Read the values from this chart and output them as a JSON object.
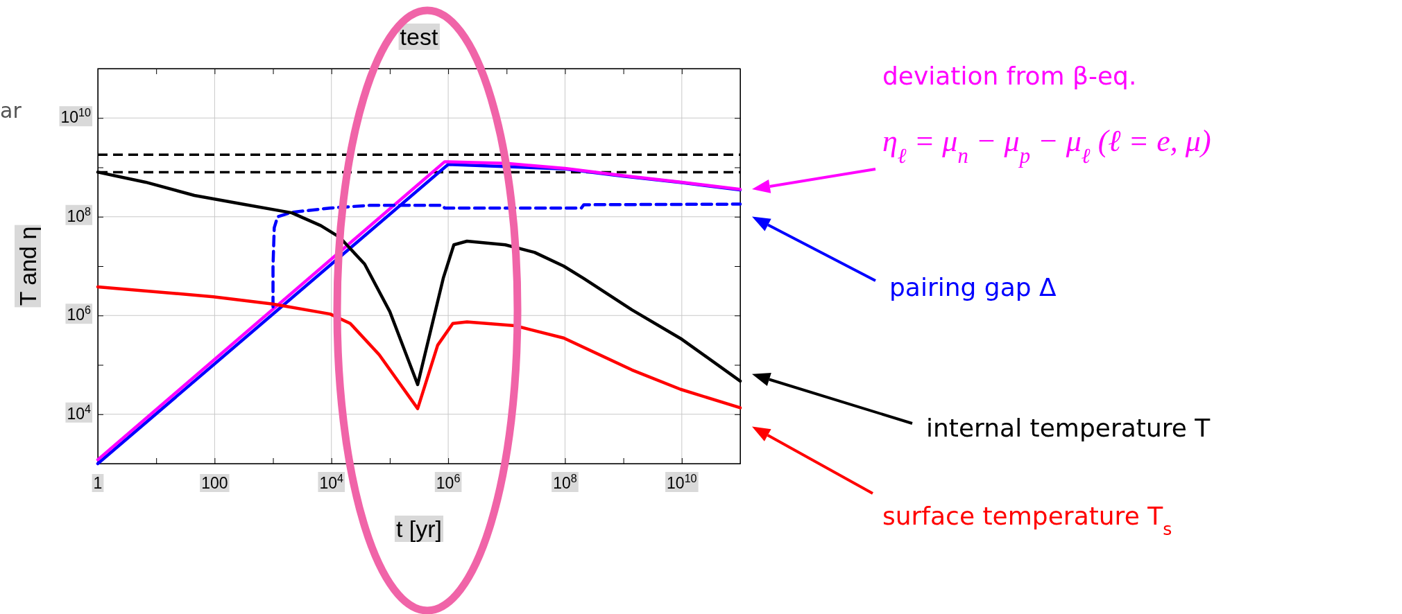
{
  "chart_data": {
    "type": "line",
    "title": "test",
    "xlabel": "t [yr]",
    "ylabel": "T and η",
    "log": "xy",
    "grid": true,
    "marker": "none",
    "xlim": [
      1,
      100000000000.0
    ],
    "ylim": [
      1000.0,
      100000000000.0
    ],
    "xticks": [
      1,
      {
        "value": 10,
        "label": null
      },
      100,
      {
        "value": 1000,
        "label": null
      },
      {
        "value": 10000.0,
        "label": "10$^{4}$"
      },
      {
        "value": 100000.0,
        "label": null
      },
      {
        "value": 1000000.0,
        "label": "10$^{6}$"
      },
      {
        "value": 10000000.0,
        "label": null
      },
      {
        "value": 100000000.0,
        "label": "10$^{8}$"
      },
      {
        "value": 1000000000.0,
        "label": null
      },
      {
        "value": 10000000000.0,
        "label": "10$^{10}$"
      }
    ],
    "yticks": [
      {
        "value": 10000.0,
        "label": "10$^{4}$"
      },
      {
        "value": 100000.0,
        "label": null
      },
      {
        "value": 1000000.0,
        "label": "10$^{6}$"
      },
      {
        "value": 10000000.0,
        "label": null
      },
      {
        "value": 100000000.0,
        "label": "10$^{8}$"
      },
      {
        "value": 1000000000.0,
        "label": null
      },
      {
        "value": 10000000000.0,
        "label": "10$^{10}$"
      }
    ],
    "ref_lines": [
      {
        "axis": "y",
        "value": 1800000000.0,
        "color": "#000000",
        "line_style": "dashed"
      },
      {
        "axis": "y",
        "value": 800000000.0,
        "color": "#000000",
        "line_style": "dashed"
      }
    ],
    "series": [
      {
        "color": "#0000ff",
        "line_style": "solid",
        "x": [
          1,
          1000000.0,
          100000000.0,
          1000000000.0,
          10000000000.0,
          100000000000.0
        ],
        "values": [
          1000.0,
          1150000000.0,
          930000000.0,
          660000000.0,
          490000000.0,
          350000000.0
        ]
      },
      {
        "color": "#ff00ff",
        "line_style": "solid",
        "x": [
          1,
          870000.0,
          1000000.0,
          10000000.0,
          100000000.0,
          1000000000.0,
          10000000000.0,
          100000000000.0
        ],
        "values": [
          1200.0,
          1300000000.0,
          1300000000.0,
          1200000000.0,
          950000000.0,
          680000000.0,
          500000000.0,
          360000000.0
        ]
      },
      {
        "color": "#0000ff",
        "line_style": "dashed",
        "x": [
          1000,
          1000,
          1050,
          1200,
          2100,
          9500,
          45000.0,
          800000.0,
          870000.0,
          190000000.0,
          210000000.0,
          100000000000.0
        ],
        "values": [
          1500000.0,
          10000000.0,
          60000000.0,
          100000000.0,
          123000000.0,
          150000000.0,
          170000000.0,
          170000000.0,
          150000000.0,
          150000000.0,
          175000000.0,
          180000000.0
        ]
      },
      {
        "color": "#000000",
        "line_style": "solid",
        "x": [
          1,
          6.6,
          45,
          300,
          2100,
          6600,
          14000.0,
          37000.0,
          100000.0,
          300000.0,
          830000.0,
          1250000.0,
          2100000.0,
          9500000.0,
          30000000.0,
          95000000.0,
          210000000.0,
          1400000000.0,
          10000000000.0,
          100000000000.0
        ],
        "values": [
          800000000.0,
          500000000.0,
          270000000.0,
          180000000.0,
          120000000.0,
          66000000.0,
          38000000.0,
          11000000.0,
          1200000.0,
          40000.0,
          5900000.0,
          27000000.0,
          32000000.0,
          27000000.0,
          19000000.0,
          10000000.0,
          5600000.0,
          1300000.0,
          330000.0,
          47000.0
        ]
      },
      {
        "color": "#ff0000",
        "line_style": "solid",
        "x": [
          1,
          95,
          1000,
          9500,
          21000.0,
          66000.0,
          300000.0,
          660000.0,
          1200000.0,
          2100000.0,
          14000000.0,
          95000000.0,
          1400000000.0,
          9500000000.0,
          100000000000.0
        ],
        "values": [
          3800000.0,
          2400000.0,
          1700000.0,
          1070000.0,
          690000.0,
          160000.0,
          13000.0,
          250000.0,
          690000.0,
          740000.0,
          620000.0,
          350000.0,
          79000.0,
          32000.0,
          13500.0
        ]
      }
    ],
    "annotations": [
      "deviation from β-eq.",
      "η$_{ℓ}$ = μ$_{n}$ − μ$_{p}$ − μ$_{ℓ}$ (ℓ = e, μ)",
      "pairing gap Δ",
      "internal temperature T",
      "surface temperature T$_{s}$",
      "ar"
    ]
  }
}
